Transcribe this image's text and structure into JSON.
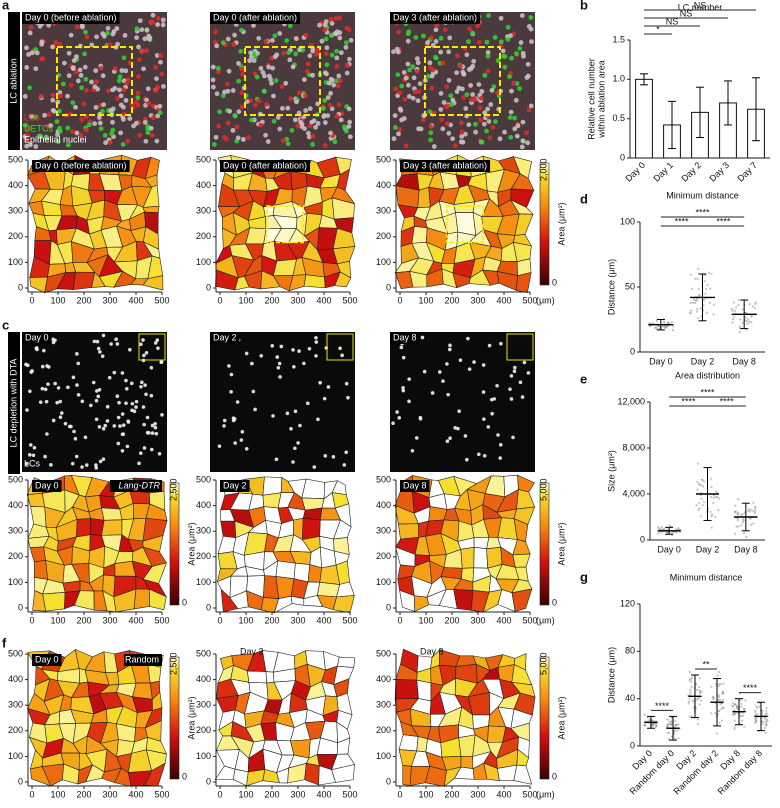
{
  "panel_labels": [
    "a",
    "b",
    "c",
    "d",
    "e",
    "f",
    "g"
  ],
  "row_a": {
    "side_label": "LC ablation",
    "images": [
      "Day 0 (before ablation)",
      "Day 0 (after ablation)",
      "Day 3 (after ablation)"
    ],
    "legend": [
      "LCs",
      "DETCs",
      "Epithelial nuclei"
    ],
    "colorbar": {
      "max": "2,000",
      "min": "0",
      "label": "Area (μm²)"
    }
  },
  "row_c": {
    "side_label": "LC depletion with DTA",
    "images": [
      "Day 0",
      "Day 2",
      "Day 8"
    ],
    "image_legend": "LCs",
    "map_tag": "Lang-DTR",
    "colorbars": [
      {
        "max": "2,500",
        "min": "0",
        "label": "Area (μm²)"
      },
      {
        "max": "5,000",
        "min": "0",
        "label": "Area (μm²)"
      }
    ]
  },
  "row_f": {
    "map_labels": [
      "Day 0",
      "Day 2",
      "Day 8"
    ],
    "map_tag": "Random",
    "colorbars": [
      {
        "max": "2,500",
        "min": "0",
        "label": "Area (μm²)"
      },
      {
        "max": "5,000",
        "min": "0",
        "label": "Area (μm²)"
      }
    ]
  },
  "map_axes": {
    "ticks": [
      0,
      100,
      200,
      300,
      400,
      500
    ],
    "unit": "(μm)"
  },
  "chart_data": [
    {
      "type": "bar",
      "title": "LC number",
      "y_label": [
        "Relative cell number",
        "within ablation area"
      ],
      "categories": [
        "Day 0",
        "Day 1",
        "Day 2",
        "Day 3",
        "Day 7"
      ],
      "values": [
        1.0,
        0.42,
        0.58,
        0.7,
        0.62
      ],
      "errors": [
        0.07,
        0.3,
        0.32,
        0.28,
        0.4
      ],
      "color": "#ffffff",
      "ylim": [
        0,
        1.5
      ],
      "yticks": [
        0,
        0.5,
        {
          "value": 1,
          "label": "1.0"
        },
        1.5
      ],
      "significance": [
        "*",
        "NS",
        "NS",
        "NS"
      ]
    },
    {
      "type": "errorbar",
      "title": "Minimum distance",
      "y_label": "Distance (μm)",
      "categories": [
        "Day 0",
        "Day 2",
        "Day 8"
      ],
      "values": [
        21,
        42,
        29
      ],
      "errors": [
        4,
        18,
        11
      ],
      "color": "#9a9a9a",
      "ylim": [
        0,
        100
      ],
      "yticks": [
        0,
        50,
        100
      ],
      "significance": [
        "****",
        "****",
        "****"
      ]
    },
    {
      "type": "errorbar",
      "title": "Area distribution",
      "y_label": "Size (μm²)",
      "categories": [
        "Day 0",
        "Day 2",
        "Day 8"
      ],
      "values": [
        800,
        4000,
        2000
      ],
      "errors": [
        300,
        2300,
        1200
      ],
      "color": "#9a9a9a",
      "ylim": [
        0,
        12000
      ],
      "yticks": [
        0,
        {
          "value": 4000,
          "label": "4,000"
        },
        {
          "value": 8000,
          "label": "8,000"
        },
        {
          "value": 12000,
          "label": "12,000"
        }
      ],
      "significance": [
        "****",
        "****",
        "****"
      ]
    },
    {
      "type": "errorbar",
      "title": "Minimum distance",
      "y_label": "Distance (μm)",
      "categories": [
        "Day 0",
        "Random day 0",
        "Day 2",
        "Random day 2",
        "Day 8",
        "Random day 8"
      ],
      "values": [
        20,
        15,
        42,
        37,
        29,
        25
      ],
      "errors": [
        5,
        10,
        18,
        20,
        11,
        12
      ],
      "color": "#9a9a9a",
      "ylim": [
        0,
        120
      ],
      "yticks": [
        0,
        40,
        80,
        120
      ],
      "significance": [
        "****",
        "**",
        "****"
      ]
    }
  ]
}
